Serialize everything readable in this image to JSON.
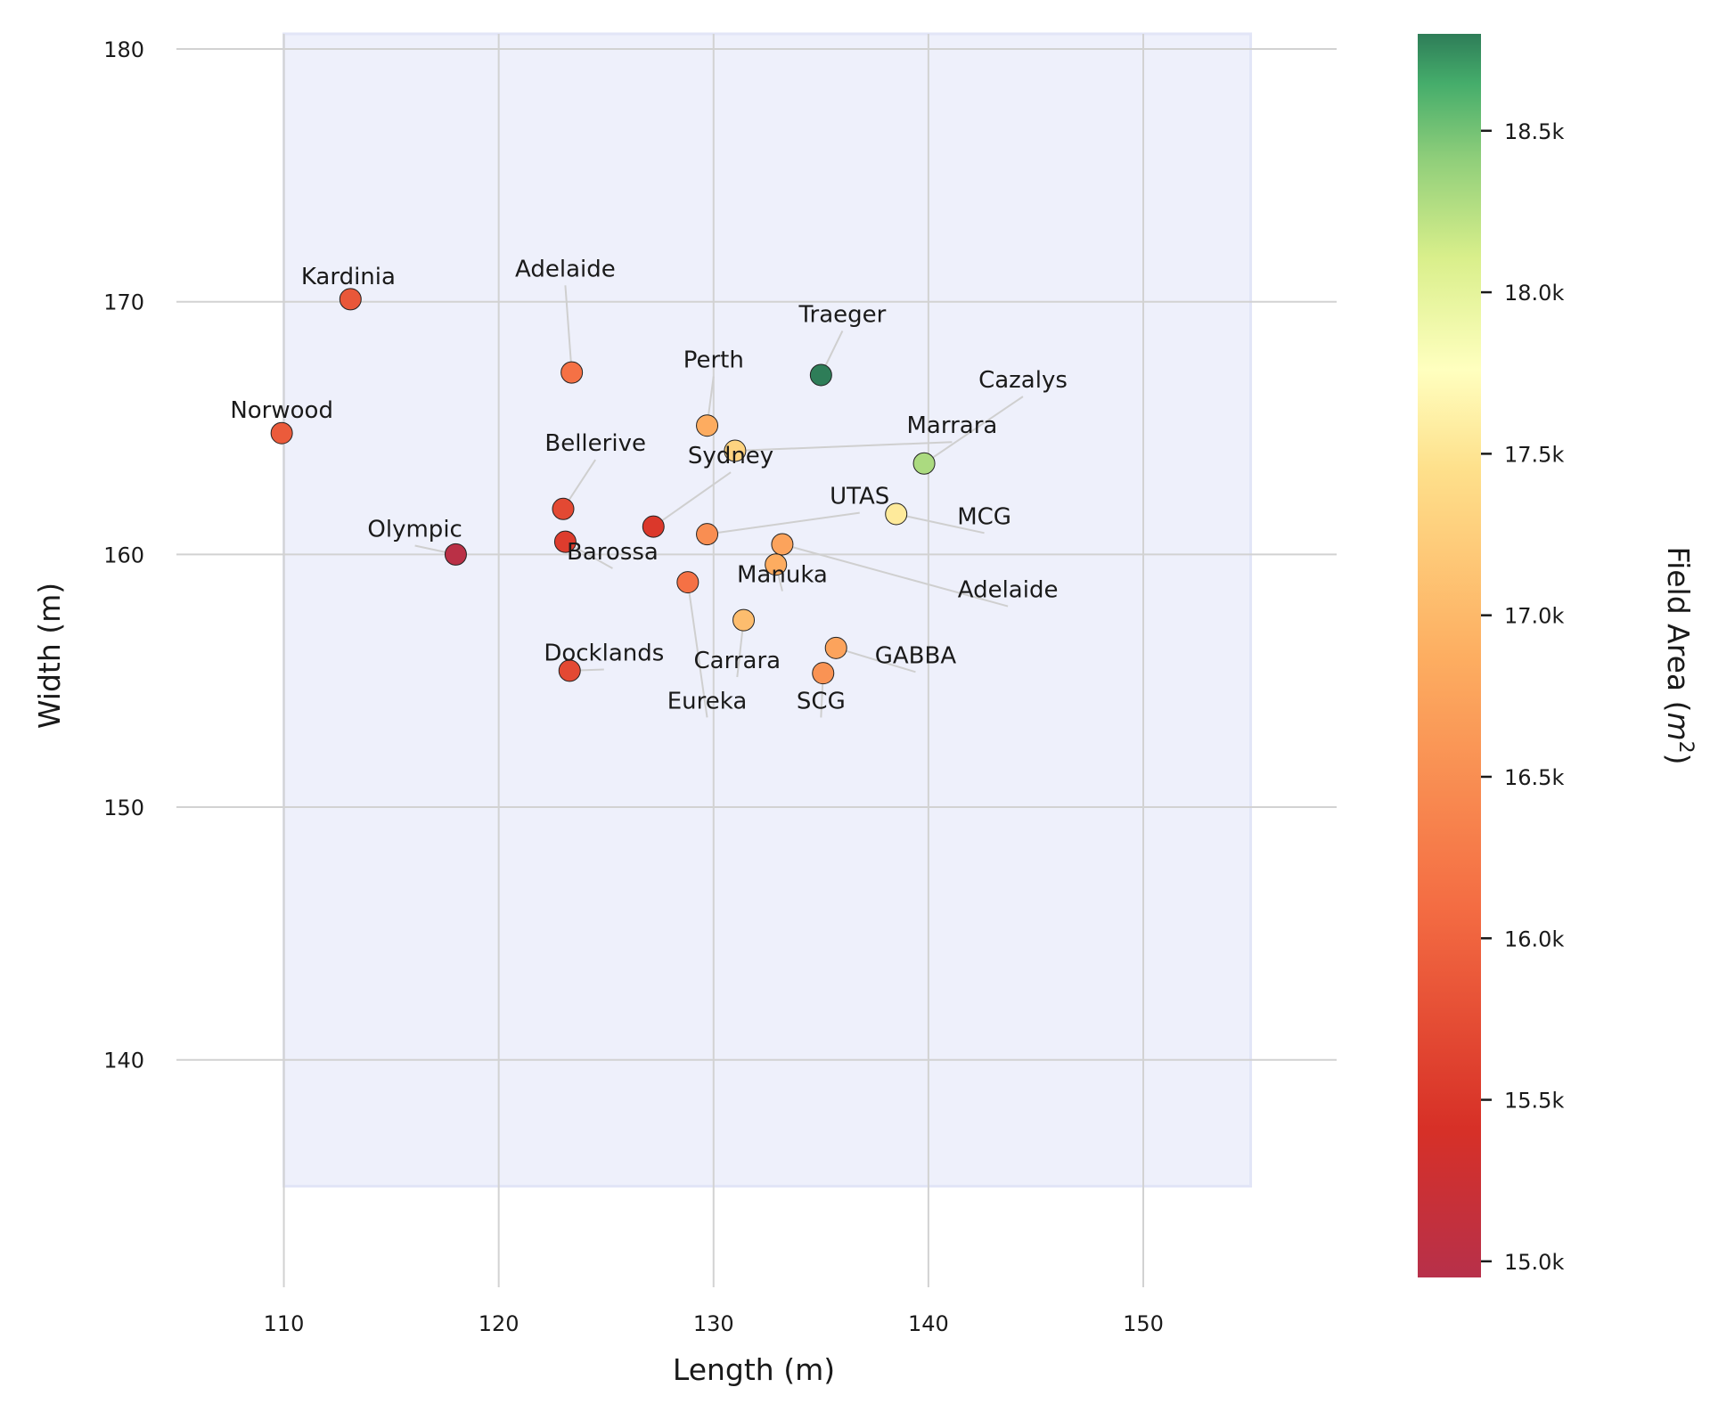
{
  "chart_data": {
    "type": "scatter",
    "xlabel": "Length (m)",
    "ylabel": "Width (m)",
    "xlim": [
      105,
      159
    ],
    "ylim": [
      131,
      180.6
    ],
    "xticks": [
      110,
      120,
      130,
      140,
      150
    ],
    "yticks": [
      140,
      150,
      160,
      170,
      180
    ],
    "x_tick_labels": [
      "110",
      "120",
      "130",
      "140",
      "150"
    ],
    "y_tick_labels": [
      "140",
      "150",
      "160",
      "170",
      "180"
    ],
    "shaded_region": {
      "x": [
        110,
        155
      ],
      "y": [
        135,
        185
      ],
      "color": "#eef0fb"
    },
    "grid": true,
    "colorbar": {
      "label": "Field Area (m²)",
      "label_text": "Field Area (",
      "label_math": "m",
      "label_sup": "2",
      "label_close": ")",
      "range": [
        14950,
        18800
      ],
      "ticks": [
        15000,
        15500,
        16000,
        16500,
        17000,
        17500,
        18000,
        18500
      ],
      "tick_labels": [
        "15.0k",
        "15.5k",
        "16.0k",
        "16.5k",
        "17.0k",
        "17.5k",
        "18.0k",
        "18.5k"
      ],
      "colormap": "RdYlGn"
    },
    "points": [
      {
        "name": "Kardinia",
        "length": 113.1,
        "width": 170.1,
        "area": 15850,
        "label_x": 113.0,
        "label_y": 170.7
      },
      {
        "name": "Adelaide",
        "length": 123.4,
        "width": 167.2,
        "area": 16150,
        "label_x": 123.1,
        "label_y": 171.0
      },
      {
        "name": "Norwood",
        "length": 109.9,
        "width": 164.8,
        "area": 15900,
        "label_x": 109.9,
        "label_y": 165.4
      },
      {
        "name": "Traeger",
        "length": 135.0,
        "width": 167.1,
        "area": 18800,
        "label_x": 136.0,
        "label_y": 169.2
      },
      {
        "name": "Perth",
        "length": 129.7,
        "width": 165.1,
        "area": 16850,
        "label_x": 130.0,
        "label_y": 167.4
      },
      {
        "name": "Cazalys",
        "length": 139.8,
        "width": 163.6,
        "area": 18300,
        "label_x": 144.4,
        "label_y": 166.6
      },
      {
        "name": "Marrara",
        "length": 131.0,
        "width": 164.1,
        "area": 17300,
        "label_x": 141.1,
        "label_y": 164.8
      },
      {
        "name": "Sydney",
        "length": 127.2,
        "width": 161.1,
        "area": 15500,
        "label_x": 130.8,
        "label_y": 163.6
      },
      {
        "name": "Bellerive",
        "length": 123.0,
        "width": 161.8,
        "area": 15700,
        "label_x": 124.5,
        "label_y": 164.1
      },
      {
        "name": "UTAS",
        "length": 129.7,
        "width": 160.8,
        "area": 16500,
        "label_x": 136.8,
        "label_y": 162.0
      },
      {
        "name": "MCG",
        "length": 138.5,
        "width": 161.6,
        "area": 17550,
        "label_x": 142.6,
        "label_y": 161.2
      },
      {
        "name": "Olympic",
        "length": 118.0,
        "width": 160.0,
        "area": 15000,
        "label_x": 116.1,
        "label_y": 160.7
      },
      {
        "name": "Barossa",
        "length": 123.1,
        "width": 160.5,
        "area": 15550,
        "label_x": 125.3,
        "label_y": 159.8
      },
      {
        "name": "Adelaide",
        "length": 133.2,
        "width": 160.4,
        "area": 16750,
        "label_x": 143.7,
        "label_y": 158.3
      },
      {
        "name": "Manuka",
        "length": 132.9,
        "width": 159.6,
        "area": 16850,
        "label_x": 133.2,
        "label_y": 158.9
      },
      {
        "name": "Eureka",
        "length": 128.8,
        "width": 158.9,
        "area": 16150,
        "label_x": 129.7,
        "label_y": 153.9
      },
      {
        "name": "Carrara",
        "length": 131.4,
        "width": 157.4,
        "area": 17050,
        "label_x": 131.1,
        "label_y": 155.5
      },
      {
        "name": "GABBA",
        "length": 135.7,
        "width": 156.3,
        "area": 16750,
        "label_x": 139.4,
        "label_y": 155.7
      },
      {
        "name": "Docklands",
        "length": 123.3,
        "width": 155.4,
        "area": 15700,
        "label_x": 124.9,
        "label_y": 155.8
      },
      {
        "name": "SCG",
        "length": 135.1,
        "width": 155.3,
        "area": 16550,
        "label_x": 135.0,
        "label_y": 153.9
      }
    ]
  }
}
